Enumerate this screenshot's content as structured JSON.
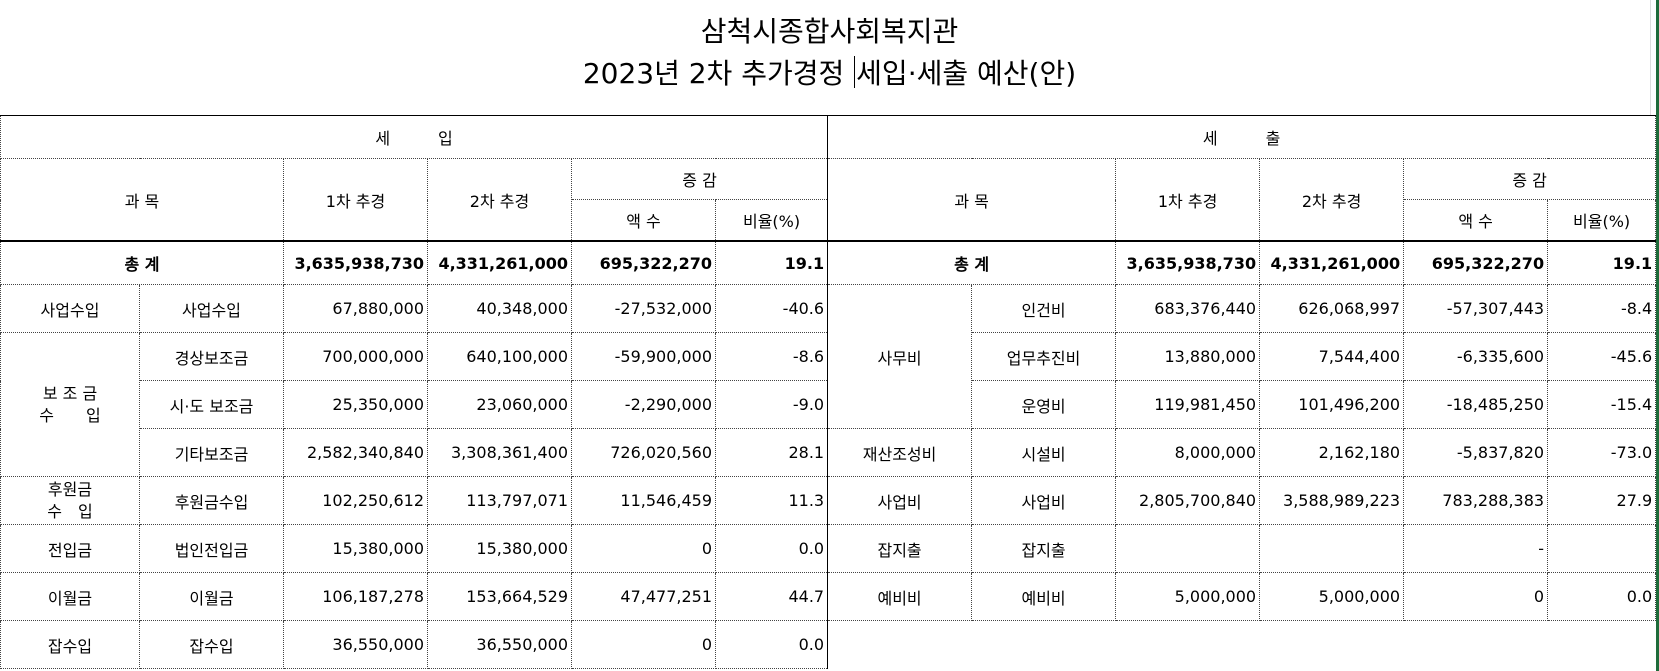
{
  "title": {
    "line1": "삼척시종합사회복지관",
    "line2_a": "2023년 2차 추가경정 ",
    "line2_b": "세입·세출 예산(안)"
  },
  "headers": {
    "income": "세　　　입",
    "expense": "세　　　출",
    "subject": "과 목",
    "first_rev": "1차 추경",
    "second_rev": "2차 추경",
    "change": "증 감",
    "amount": "액 수",
    "ratio": "비율(%)"
  },
  "total": {
    "label": "총 계",
    "income": {
      "first": "3,635,938,730",
      "second": "4,331,261,000",
      "amount": "695,322,270",
      "ratio": "19.1"
    },
    "expense": {
      "first": "3,635,938,730",
      "second": "4,331,261,000",
      "amount": "695,322,270",
      "ratio": "19.1"
    }
  },
  "income_groups": {
    "business": "사업수입",
    "subsidy": "보 조 금\n수　　입",
    "donation": "후원금\n수　입",
    "transfer": "전입금",
    "carryover": "이월금",
    "misc": "잡수입"
  },
  "income_rows": [
    {
      "item": "사업수입",
      "first": "67,880,000",
      "second": "40,348,000",
      "amount": "-27,532,000",
      "ratio": "-40.6"
    },
    {
      "item": "경상보조금",
      "first": "700,000,000",
      "second": "640,100,000",
      "amount": "-59,900,000",
      "ratio": "-8.6"
    },
    {
      "item": "시·도 보조금",
      "first": "25,350,000",
      "second": "23,060,000",
      "amount": "-2,290,000",
      "ratio": "-9.0"
    },
    {
      "item": "기타보조금",
      "first": "2,582,340,840",
      "second": "3,308,361,400",
      "amount": "726,020,560",
      "ratio": "28.1"
    },
    {
      "item": "후원금수입",
      "first": "102,250,612",
      "second": "113,797,071",
      "amount": "11,546,459",
      "ratio": "11.3"
    },
    {
      "item": "법인전입금",
      "first": "15,380,000",
      "second": "15,380,000",
      "amount": "0",
      "ratio": "0.0"
    },
    {
      "item": "이월금",
      "first": "106,187,278",
      "second": "153,664,529",
      "amount": "47,477,251",
      "ratio": "44.7"
    },
    {
      "item": "잡수입",
      "first": "36,550,000",
      "second": "36,550,000",
      "amount": "0",
      "ratio": "0.0"
    }
  ],
  "expense_groups": {
    "office": "사무비",
    "property": "재산조성비",
    "project": "사업비",
    "misc": "잡지출",
    "reserve": "예비비"
  },
  "expense_rows": [
    {
      "item": "인건비",
      "first": "683,376,440",
      "second": "626,068,997",
      "amount": "-57,307,443",
      "ratio": "-8.4"
    },
    {
      "item": "업무추진비",
      "first": "13,880,000",
      "second": "7,544,400",
      "amount": "-6,335,600",
      "ratio": "-45.6"
    },
    {
      "item": "운영비",
      "first": "119,981,450",
      "second": "101,496,200",
      "amount": "-18,485,250",
      "ratio": "-15.4"
    },
    {
      "item": "시설비",
      "first": "8,000,000",
      "second": "2,162,180",
      "amount": "-5,837,820",
      "ratio": "-73.0"
    },
    {
      "item": "사업비",
      "first": "2,805,700,840",
      "second": "3,588,989,223",
      "amount": "783,288,383",
      "ratio": "27.9"
    },
    {
      "item": "잡지출",
      "first": "",
      "second": "",
      "amount": "-",
      "ratio": ""
    },
    {
      "item": "예비비",
      "first": "5,000,000",
      "second": "5,000,000",
      "amount": "0",
      "ratio": "0.0"
    }
  ]
}
